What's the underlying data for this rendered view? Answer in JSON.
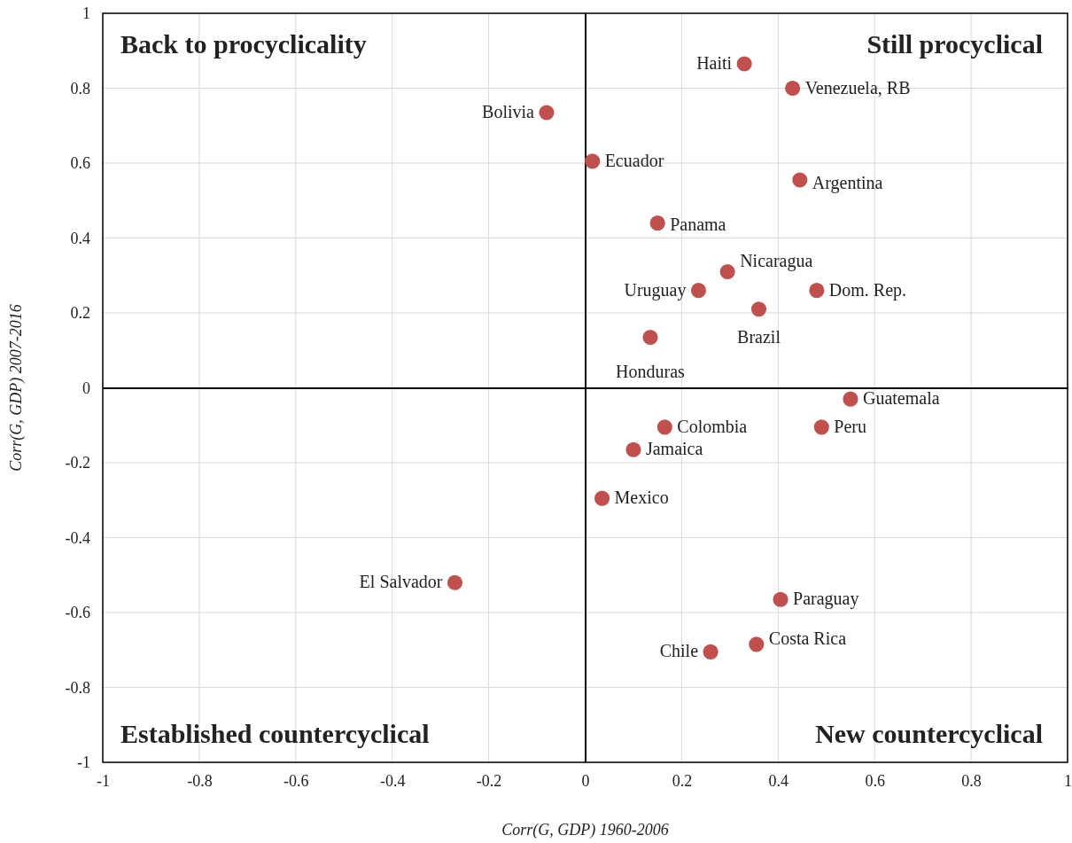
{
  "chart_data": {
    "type": "scatter",
    "xlabel": "Corr(G, GDP) 1960-2006",
    "ylabel": "Corr(G, GDP) 2007-2016",
    "xlim": [
      -1,
      1
    ],
    "ylim": [
      -1,
      1
    ],
    "xticks": [
      -1,
      -0.8,
      -0.6,
      -0.4,
      -0.2,
      0,
      0.2,
      0.4,
      0.6,
      0.8,
      1
    ],
    "yticks": [
      -1,
      -0.8,
      -0.6,
      -0.4,
      -0.2,
      0,
      0.2,
      0.4,
      0.6,
      0.8,
      1
    ],
    "grid": true,
    "marker": "circle",
    "series": [
      {
        "color": "#c0504d",
        "x": [
          0.33,
          0.43,
          -0.08,
          0.015,
          0.445,
          0.15,
          0.295,
          0.235,
          0.48,
          0.36,
          0.135,
          0.55,
          0.165,
          0.49,
          0.1,
          0.035,
          -0.27,
          0.405,
          0.355,
          0.26
        ],
        "values": [
          0.865,
          0.8,
          0.735,
          0.605,
          0.555,
          0.44,
          0.31,
          0.26,
          0.26,
          0.21,
          0.135,
          -0.03,
          -0.105,
          -0.105,
          -0.165,
          -0.295,
          -0.52,
          -0.565,
          -0.685,
          -0.705
        ]
      }
    ],
    "annotations": [
      "Back to procyclicality",
      "Still procyclical",
      "Established countercyclical",
      "New countercyclical",
      {
        "text": "Haiti",
        "x": 0.33,
        "y": 0.865
      },
      {
        "text": "Venezuela, RB",
        "x": 0.43,
        "y": 0.8
      },
      {
        "text": "Bolivia",
        "x": -0.08,
        "y": 0.735
      },
      {
        "text": "Ecuador",
        "x": 0.015,
        "y": 0.605
      },
      {
        "text": "Argentina",
        "x": 0.445,
        "y": 0.555
      },
      {
        "text": "Panama",
        "x": 0.15,
        "y": 0.44
      },
      {
        "text": "Nicaragua",
        "x": 0.295,
        "y": 0.31
      },
      {
        "text": "Uruguay",
        "x": 0.235,
        "y": 0.26
      },
      {
        "text": "Dom. Rep.",
        "x": 0.48,
        "y": 0.26
      },
      {
        "text": "Brazil",
        "x": 0.36,
        "y": 0.21
      },
      {
        "text": "Honduras",
        "x": 0.135,
        "y": 0.135
      },
      {
        "text": "Guatemala",
        "x": 0.55,
        "y": -0.03
      },
      {
        "text": "Colombia",
        "x": 0.165,
        "y": -0.105
      },
      {
        "text": "Peru",
        "x": 0.49,
        "y": -0.105
      },
      {
        "text": "Jamaica",
        "x": 0.1,
        "y": -0.165
      },
      {
        "text": "Mexico",
        "x": 0.035,
        "y": -0.295
      },
      {
        "text": "El Salvador",
        "x": -0.27,
        "y": -0.52
      },
      {
        "text": "Paraguay",
        "x": 0.405,
        "y": -0.565
      },
      {
        "text": "Costa Rica",
        "x": 0.355,
        "y": -0.685
      },
      {
        "text": "Chile",
        "x": 0.26,
        "y": -0.705
      }
    ]
  }
}
